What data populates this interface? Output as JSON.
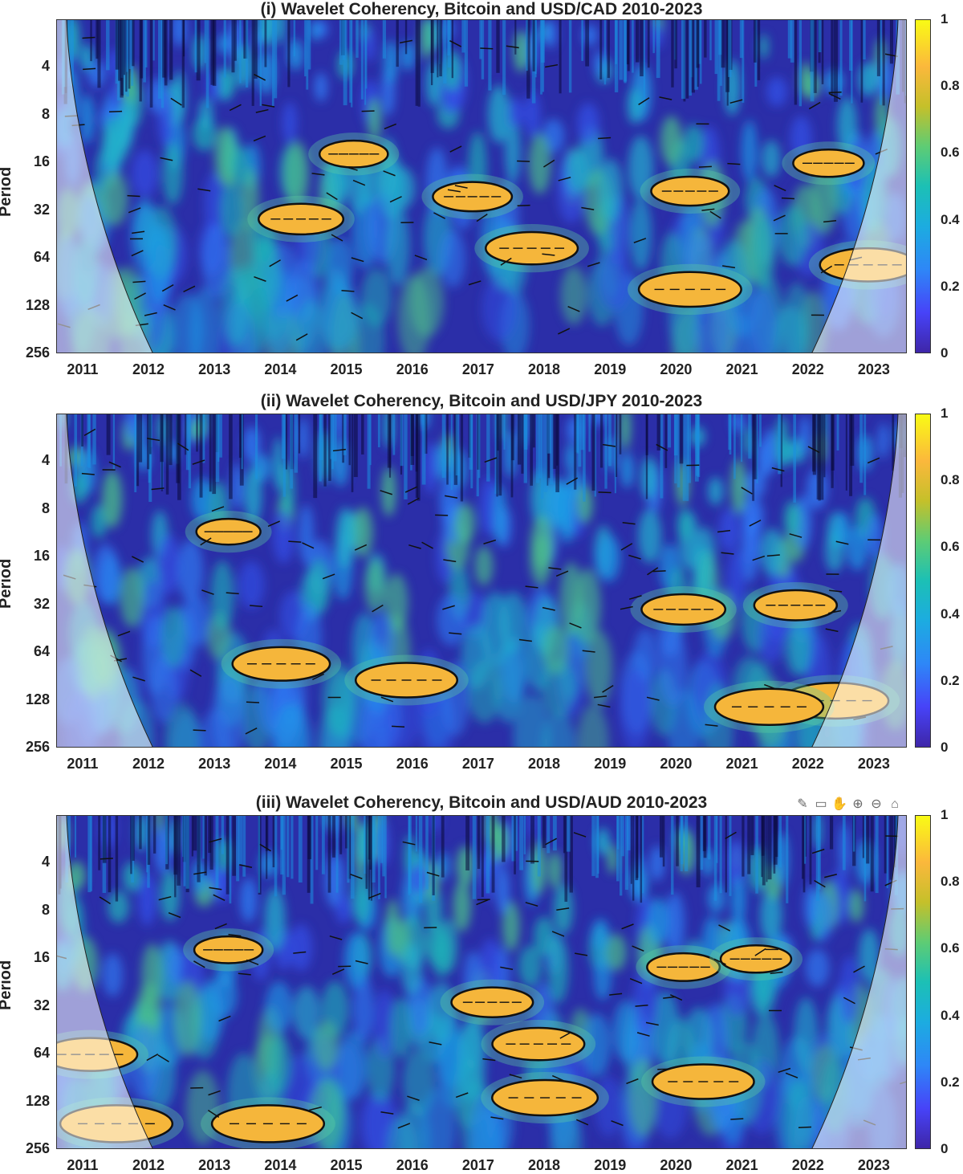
{
  "chart_data": [
    {
      "type": "heatmap",
      "title": "(i) Wavelet Coherency, Bitcoin and USD/CAD 2010-2023",
      "ylabel": "Period",
      "xticks": [
        "2011",
        "2012",
        "2013",
        "2014",
        "2015",
        "2016",
        "2017",
        "2018",
        "2019",
        "2020",
        "2021",
        "2022",
        "2023"
      ],
      "yticks": [
        "4",
        "8",
        "16",
        "32",
        "64",
        "128",
        "256"
      ],
      "colorbar_ticks": [
        "0",
        "0.2",
        "0.4",
        "0.6",
        "0.8",
        "1"
      ],
      "clim": [
        0,
        1
      ],
      "xlim": [
        2010.6,
        2023.5
      ],
      "ylim_period": [
        2,
        256
      ],
      "y_scale": "log2",
      "significant_regions": [
        {
          "x": 2020.2,
          "period": 100
        },
        {
          "x": 2017.8,
          "period": 55
        },
        {
          "x": 2022.3,
          "period": 16
        },
        {
          "x": 2014.3,
          "period": 36
        },
        {
          "x": 2020.2,
          "period": 24
        },
        {
          "x": 2015.1,
          "period": 14
        },
        {
          "x": 2016.9,
          "period": 26
        },
        {
          "x": 2022.9,
          "period": 70
        }
      ]
    },
    {
      "type": "heatmap",
      "title": "(ii) Wavelet Coherency, Bitcoin and USD/JPY 2010-2023",
      "ylabel": "Period",
      "xticks": [
        "2011",
        "2012",
        "2013",
        "2014",
        "2015",
        "2016",
        "2017",
        "2018",
        "2019",
        "2020",
        "2021",
        "2022",
        "2023"
      ],
      "yticks": [
        "4",
        "8",
        "16",
        "32",
        "64",
        "128",
        "256"
      ],
      "colorbar_ticks": [
        "0",
        "0.2",
        "0.4",
        "0.6",
        "0.8",
        "1"
      ],
      "clim": [
        0,
        1
      ],
      "xlim": [
        2010.6,
        2023.5
      ],
      "ylim_period": [
        2,
        256
      ],
      "y_scale": "log2",
      "significant_regions": [
        {
          "x": 2015.9,
          "period": 95
        },
        {
          "x": 2013.2,
          "period": 11
        },
        {
          "x": 2014.0,
          "period": 75
        },
        {
          "x": 2022.4,
          "period": 128
        },
        {
          "x": 2021.4,
          "period": 140
        },
        {
          "x": 2021.8,
          "period": 32
        },
        {
          "x": 2020.1,
          "period": 34
        }
      ]
    },
    {
      "type": "heatmap",
      "title": "(iii) Wavelet Coherency, Bitcoin and USD/AUD 2010-2023",
      "ylabel": "Period",
      "xticks": [
        "2011",
        "2012",
        "2013",
        "2014",
        "2015",
        "2016",
        "2017",
        "2018",
        "2019",
        "2020",
        "2021",
        "2022",
        "2023"
      ],
      "yticks": [
        "4",
        "8",
        "16",
        "32",
        "64",
        "128",
        "256"
      ],
      "colorbar_ticks": [
        "0",
        "0.2",
        "0.4",
        "0.6",
        "0.8",
        "1"
      ],
      "clim": [
        0,
        1
      ],
      "xlim": [
        2010.6,
        2023.5
      ],
      "ylim_period": [
        2,
        256
      ],
      "y_scale": "log2",
      "significant_regions": [
        {
          "x": 2018.0,
          "period": 120
        },
        {
          "x": 2020.4,
          "period": 95
        },
        {
          "x": 2011.5,
          "period": 175
        },
        {
          "x": 2013.8,
          "period": 175
        },
        {
          "x": 2020.1,
          "period": 18
        },
        {
          "x": 2017.2,
          "period": 30
        },
        {
          "x": 2011.1,
          "period": 64
        },
        {
          "x": 2013.2,
          "period": 14
        },
        {
          "x": 2017.9,
          "period": 55
        },
        {
          "x": 2021.2,
          "period": 16
        }
      ]
    }
  ],
  "toolbar": {
    "icons": [
      "brush-icon",
      "datatip-icon",
      "pan-icon",
      "zoom-in-icon",
      "zoom-out-icon",
      "home-icon"
    ]
  }
}
